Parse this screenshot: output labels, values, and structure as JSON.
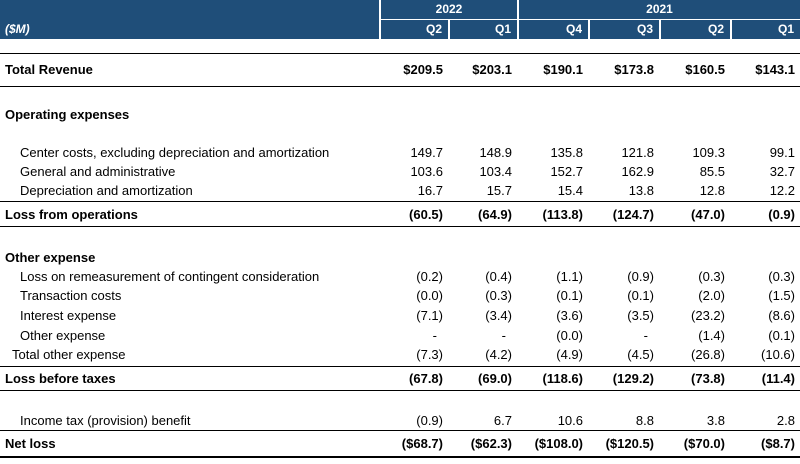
{
  "header": {
    "unit_label": "($M)",
    "years": [
      "2022",
      "2021"
    ],
    "quarters": [
      "Q2",
      "Q1",
      "Q4",
      "Q3",
      "Q2",
      "Q1"
    ]
  },
  "rows": [
    {
      "label": "Total Revenue",
      "values": [
        "$209.5",
        "$203.1",
        "$190.1",
        "$173.8",
        "$160.5",
        "$143.1"
      ]
    },
    {
      "label": "Operating expenses"
    },
    {
      "label": "Center costs, excluding depreciation and amortization",
      "values": [
        "149.7",
        "148.9",
        "135.8",
        "121.8",
        "109.3",
        "99.1"
      ]
    },
    {
      "label": "General and administrative",
      "values": [
        "103.6",
        "103.4",
        "152.7",
        "162.9",
        "85.5",
        "32.7"
      ]
    },
    {
      "label": "Depreciation and amortization",
      "values": [
        "16.7",
        "15.7",
        "15.4",
        "13.8",
        "12.8",
        "12.2"
      ]
    },
    {
      "label": "Loss from operations",
      "values": [
        "(60.5)",
        "(64.9)",
        "(113.8)",
        "(124.7)",
        "(47.0)",
        "(0.9)"
      ]
    },
    {
      "label": "Other expense"
    },
    {
      "label": "Loss on remeasurement of contingent consideration",
      "values": [
        "(0.2)",
        "(0.4)",
        "(1.1)",
        "(0.9)",
        "(0.3)",
        "(0.3)"
      ]
    },
    {
      "label": "Transaction costs",
      "values": [
        "(0.0)",
        "(0.3)",
        "(0.1)",
        "(0.1)",
        "(2.0)",
        "(1.5)"
      ]
    },
    {
      "label": "Interest expense",
      "values": [
        "(7.1)",
        "(3.4)",
        "(3.6)",
        "(3.5)",
        "(23.2)",
        "(8.6)"
      ]
    },
    {
      "label": "Other expense",
      "values": [
        "-",
        "-",
        "(0.0)",
        "-",
        "(1.4)",
        "(0.1)"
      ]
    },
    {
      "label": "Total other expense",
      "values": [
        "(7.3)",
        "(4.2)",
        "(4.9)",
        "(4.5)",
        "(26.8)",
        "(10.6)"
      ]
    },
    {
      "label": "Loss before taxes",
      "values": [
        "(67.8)",
        "(69.0)",
        "(118.6)",
        "(129.2)",
        "(73.8)",
        "(11.4)"
      ]
    },
    {
      "label": "Income tax (provision) benefit",
      "values": [
        "(0.9)",
        "6.7",
        "10.6",
        "8.8",
        "3.8",
        "2.8"
      ]
    },
    {
      "label": "Net loss",
      "values": [
        "($68.7)",
        "($62.3)",
        "($108.0)",
        "($120.5)",
        "($70.0)",
        "($8.7)"
      ]
    }
  ]
}
